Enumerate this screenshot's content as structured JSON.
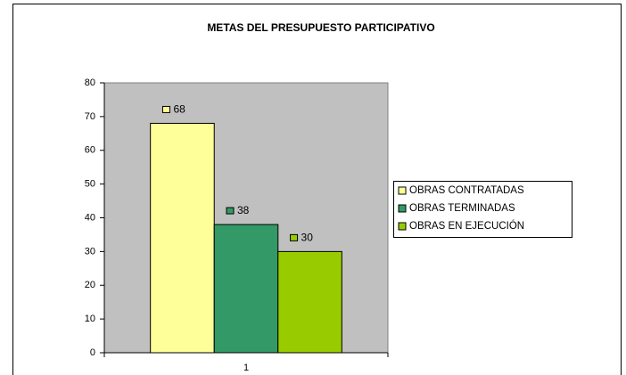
{
  "chart_data": {
    "type": "bar",
    "title": "METAS DEL PRESUPUESTO PARTICIPATIVO",
    "categories": [
      "1"
    ],
    "series": [
      {
        "name": "OBRAS CONTRATADAS",
        "color": "#ffff99",
        "values": [
          68
        ]
      },
      {
        "name": "OBRAS TERMINADAS",
        "color": "#339966",
        "values": [
          38
        ]
      },
      {
        "name": "OBRAS EN EJECUCIÓN",
        "color": "#99cc00",
        "values": [
          30
        ]
      }
    ],
    "ylim": [
      0,
      80
    ],
    "yticks": [
      0,
      10,
      20,
      30,
      40,
      50,
      60,
      70,
      80
    ],
    "legend": "right",
    "data_labels": true
  }
}
